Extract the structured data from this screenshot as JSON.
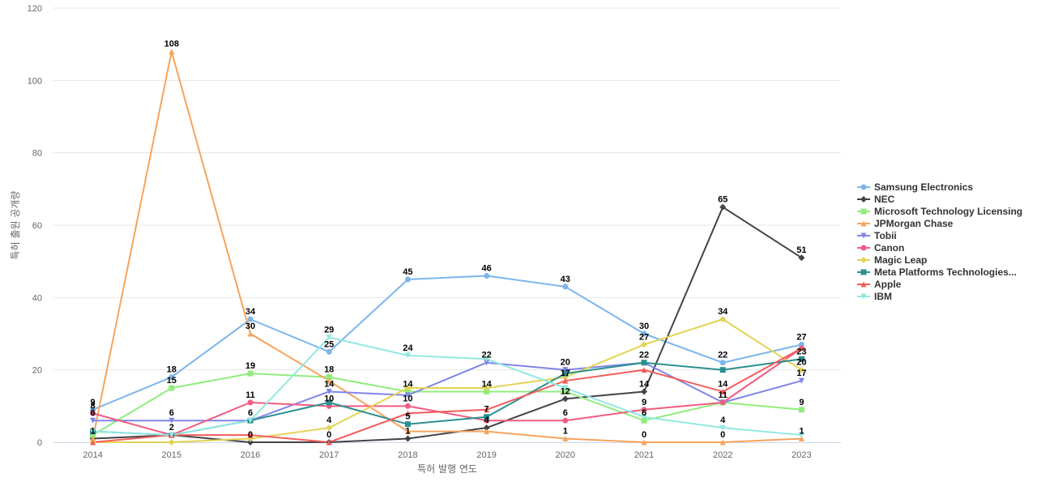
{
  "chart_data": {
    "type": "line",
    "title": "",
    "xlabel": "특허 발행 연도",
    "ylabel": "특허 출원 공개량",
    "ylim": [
      0,
      120
    ],
    "yticks": [
      0,
      20,
      40,
      60,
      80,
      100,
      120
    ],
    "categories": [
      "2014",
      "2015",
      "2016",
      "2017",
      "2018",
      "2019",
      "2020",
      "2021",
      "2022",
      "2023"
    ],
    "grid": true,
    "legend_position": "right",
    "series": [
      {
        "name": "Samsung Electronics",
        "color": "#7cb5ec",
        "marker": "circle",
        "values": [
          9,
          18,
          34,
          25,
          45,
          46,
          43,
          30,
          22,
          27
        ]
      },
      {
        "name": "NEC",
        "color": "#434348",
        "marker": "diamond",
        "values": [
          1,
          2,
          0,
          0,
          1,
          4,
          12,
          14,
          65,
          51
        ]
      },
      {
        "name": "Microsoft Technology Licensing",
        "color": "#90ed7d",
        "marker": "square",
        "values": [
          2,
          15,
          19,
          18,
          14,
          14,
          14,
          6,
          11,
          9
        ]
      },
      {
        "name": "JPMorgan Chase",
        "color": "#f7a35c",
        "marker": "triangle",
        "values": [
          1,
          108,
          30,
          17,
          3,
          3,
          1,
          0,
          0,
          1
        ]
      },
      {
        "name": "Tobii",
        "color": "#8085e9",
        "marker": "triangle-down",
        "values": [
          6,
          6,
          6,
          14,
          13,
          22,
          20,
          22,
          11,
          17
        ]
      },
      {
        "name": "Canon",
        "color": "#f15c80",
        "marker": "circle",
        "values": [
          8,
          2,
          11,
          10,
          10,
          6,
          6,
          9,
          11,
          26
        ]
      },
      {
        "name": "Magic Leap",
        "color": "#e4d354",
        "marker": "diamond",
        "values": [
          0,
          0,
          1,
          4,
          15,
          15,
          18,
          27,
          34,
          20
        ]
      },
      {
        "name": "Meta Platforms Technologies...",
        "color": "#2b908f",
        "marker": "square",
        "values": [
          3,
          2,
          6,
          11,
          5,
          7,
          19,
          22,
          20,
          23
        ]
      },
      {
        "name": "Apple",
        "color": "#f45b5b",
        "marker": "triangle",
        "values": [
          0,
          2,
          2,
          0,
          8,
          9,
          17,
          20,
          14,
          26
        ]
      },
      {
        "name": "IBM",
        "color": "#91e8e1",
        "marker": "triangle-down",
        "values": [
          3,
          2,
          6,
          29,
          24,
          23,
          15,
          7,
          4,
          2
        ]
      }
    ],
    "data_labels": [
      {
        "x": "2014",
        "text": "9",
        "y": 9
      },
      {
        "x": "2014",
        "text": "8",
        "y": 8
      },
      {
        "x": "2014",
        "text": "6",
        "y": 6
      },
      {
        "x": "2014",
        "text": "1",
        "y": 1
      },
      {
        "x": "2015",
        "text": "108",
        "y": 108
      },
      {
        "x": "2015",
        "text": "18",
        "y": 18
      },
      {
        "x": "2015",
        "text": "15",
        "y": 15
      },
      {
        "x": "2015",
        "text": "6",
        "y": 6
      },
      {
        "x": "2015",
        "text": "2",
        "y": 2
      },
      {
        "x": "2016",
        "text": "34",
        "y": 34
      },
      {
        "x": "2016",
        "text": "30",
        "y": 30
      },
      {
        "x": "2016",
        "text": "19",
        "y": 19
      },
      {
        "x": "2016",
        "text": "11",
        "y": 11
      },
      {
        "x": "2016",
        "text": "6",
        "y": 6
      },
      {
        "x": "2016",
        "text": "0",
        "y": 0
      },
      {
        "x": "2017",
        "text": "29",
        "y": 29
      },
      {
        "x": "2017",
        "text": "25",
        "y": 25
      },
      {
        "x": "2017",
        "text": "18",
        "y": 18
      },
      {
        "x": "2017",
        "text": "14",
        "y": 14
      },
      {
        "x": "2017",
        "text": "10",
        "y": 10
      },
      {
        "x": "2017",
        "text": "4",
        "y": 4
      },
      {
        "x": "2017",
        "text": "0",
        "y": 0
      },
      {
        "x": "2018",
        "text": "45",
        "y": 45
      },
      {
        "x": "2018",
        "text": "24",
        "y": 24
      },
      {
        "x": "2018",
        "text": "14",
        "y": 14
      },
      {
        "x": "2018",
        "text": "10",
        "y": 10
      },
      {
        "x": "2018",
        "text": "5",
        "y": 5
      },
      {
        "x": "2018",
        "text": "1",
        "y": 1
      },
      {
        "x": "2019",
        "text": "46",
        "y": 46
      },
      {
        "x": "2019",
        "text": "22",
        "y": 22
      },
      {
        "x": "2019",
        "text": "14",
        "y": 14
      },
      {
        "x": "2019",
        "text": "7",
        "y": 7
      },
      {
        "x": "2019",
        "text": "4",
        "y": 4
      },
      {
        "x": "2020",
        "text": "43",
        "y": 43
      },
      {
        "x": "2020",
        "text": "20",
        "y": 20
      },
      {
        "x": "2020",
        "text": "17",
        "y": 17
      },
      {
        "x": "2020",
        "text": "12",
        "y": 12
      },
      {
        "x": "2020",
        "text": "6",
        "y": 6
      },
      {
        "x": "2020",
        "text": "1",
        "y": 1
      },
      {
        "x": "2021",
        "text": "30",
        "y": 30
      },
      {
        "x": "2021",
        "text": "27",
        "y": 27
      },
      {
        "x": "2021",
        "text": "22",
        "y": 22
      },
      {
        "x": "2021",
        "text": "14",
        "y": 14
      },
      {
        "x": "2021",
        "text": "9",
        "y": 9
      },
      {
        "x": "2021",
        "text": "6",
        "y": 6
      },
      {
        "x": "2021",
        "text": "0",
        "y": 0
      },
      {
        "x": "2022",
        "text": "65",
        "y": 65
      },
      {
        "x": "2022",
        "text": "34",
        "y": 34
      },
      {
        "x": "2022",
        "text": "22",
        "y": 22
      },
      {
        "x": "2022",
        "text": "14",
        "y": 14
      },
      {
        "x": "2022",
        "text": "11",
        "y": 11
      },
      {
        "x": "2022",
        "text": "4",
        "y": 4
      },
      {
        "x": "2022",
        "text": "0",
        "y": 0
      },
      {
        "x": "2023",
        "text": "51",
        "y": 51
      },
      {
        "x": "2023",
        "text": "27",
        "y": 27
      },
      {
        "x": "2023",
        "text": "23",
        "y": 23
      },
      {
        "x": "2023",
        "text": "20",
        "y": 20
      },
      {
        "x": "2023",
        "text": "17",
        "y": 17
      },
      {
        "x": "2023",
        "text": "9",
        "y": 9
      },
      {
        "x": "2023",
        "text": "1",
        "y": 1
      }
    ]
  }
}
